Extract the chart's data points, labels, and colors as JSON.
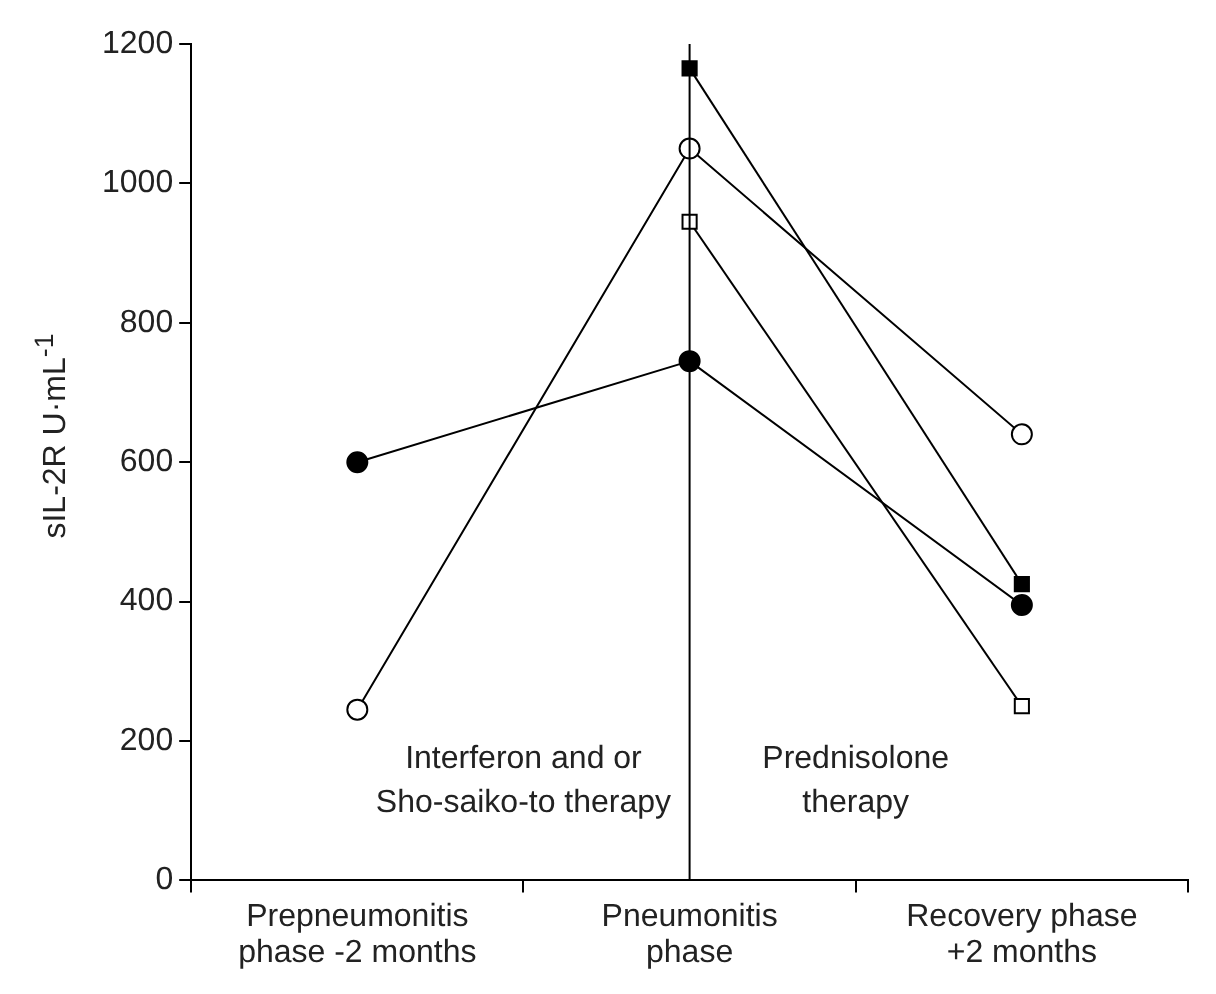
{
  "chart_data": {
    "type": "line",
    "ylabel": "sIL-2R U·mL$^{-1}$",
    "categories": [
      "Prepneumonitis\nphase -2 months",
      "Pneumonitis\nphase",
      "Recovery phase\n+2 months"
    ],
    "series": [
      {
        "color": "#000000",
        "marker": "circle",
        "values": [
          600,
          745,
          395
        ]
      },
      {
        "color": "#ffffff",
        "marker": "circle",
        "values": [
          245,
          1050,
          640
        ]
      },
      {
        "color": "#000000",
        "marker": "square",
        "values": [
          null,
          1165,
          425
        ]
      },
      {
        "color": "#ffffff",
        "marker": "square",
        "values": [
          null,
          945,
          250
        ]
      }
    ],
    "ylim": [
      0,
      1200
    ],
    "yticks": [
      0,
      200,
      400,
      600,
      800,
      1000,
      1200
    ],
    "ref_lines": [
      {
        "axis": "x",
        "value": "Pneumonitis\nphase"
      }
    ],
    "annotations": [
      "Interferon and or\nSho-saiko-to therapy",
      "Prednisolone\ntherapy"
    ],
    "legend": false
  }
}
